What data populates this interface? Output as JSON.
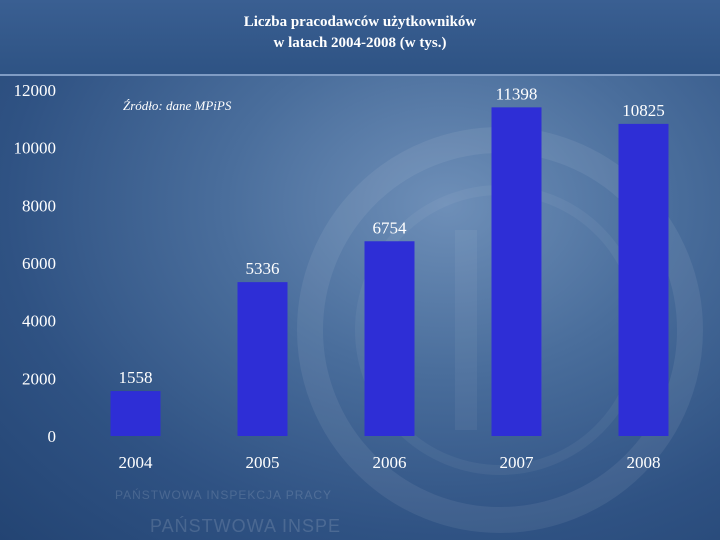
{
  "title_line1": "Liczba pracodawców użytkowników",
  "title_line2": "w latach 2004-2008 (w tys.)",
  "source_note": "Źródło: dane MPiPS",
  "watermark": {
    "line1": "PAŃSTWOWA INSPEKCJA PRACY",
    "line2": "PAŃSTWOWA INSPE"
  },
  "colors": {
    "bar": "#2e2ed6",
    "background": "#3e6496",
    "text": "#ffffff"
  },
  "chart_data": {
    "type": "bar",
    "title": "Liczba pracodawców użytkowników w latach 2004-2008 (w tys.)",
    "categories": [
      "2004",
      "2005",
      "2006",
      "2007",
      "2008"
    ],
    "values": [
      1558,
      5336,
      6754,
      11398,
      10825
    ],
    "data_labels": [
      "1558",
      "5336",
      "6754",
      "11398",
      "10825"
    ],
    "ylim": [
      0,
      12000
    ],
    "yticks": [
      0,
      2000,
      4000,
      6000,
      8000,
      10000,
      12000
    ],
    "xlabel": "",
    "ylabel": "",
    "grid": false,
    "legend": "none"
  }
}
